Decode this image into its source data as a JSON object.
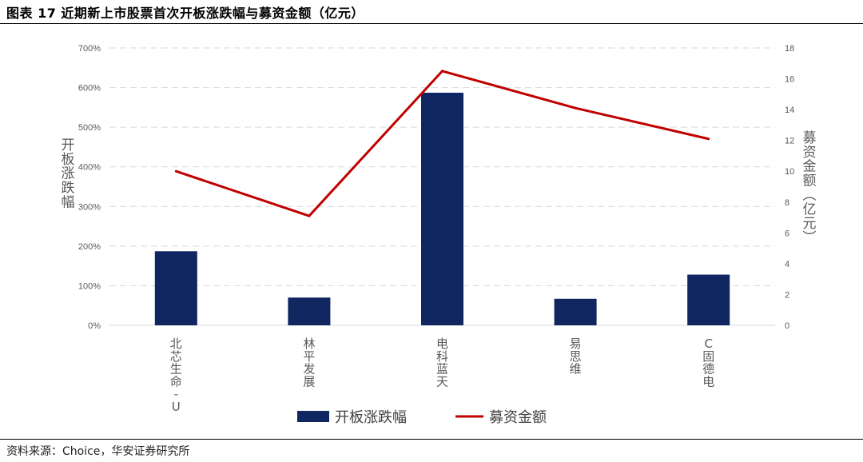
{
  "figure": {
    "title": "图表 17 近期新上市股票首次开板涨跌幅与募资金额（亿元）",
    "source": "资料来源：Choice，华安证券研究所"
  },
  "chart_data": {
    "type": "bar",
    "categories": [
      "北芯生命-U",
      "林平发展",
      "电科蓝天",
      "易思维",
      "C固德电"
    ],
    "series": [
      {
        "name": "开板涨跌幅",
        "type": "bar",
        "axis": "left",
        "unit": "%",
        "color": "#0F2660",
        "values": [
          187,
          70,
          587,
          67,
          128
        ]
      },
      {
        "name": "募资金额",
        "type": "line",
        "axis": "right",
        "unit": "亿元",
        "color": "#C00000",
        "values": [
          10.0,
          7.1,
          16.5,
          14.1,
          12.1
        ]
      }
    ],
    "ylabel": "开板涨跌幅",
    "y2label": "募资金额（亿元）",
    "ylim": [
      0,
      700
    ],
    "y2lim": [
      0,
      18
    ],
    "yticks": [
      "0%",
      "100%",
      "200%",
      "300%",
      "400%",
      "500%",
      "600%",
      "700%"
    ],
    "y2ticks": [
      "0",
      "2",
      "4",
      "6",
      "8",
      "10",
      "12",
      "14",
      "16",
      "18"
    ],
    "grid": true,
    "legend": "bottom"
  }
}
